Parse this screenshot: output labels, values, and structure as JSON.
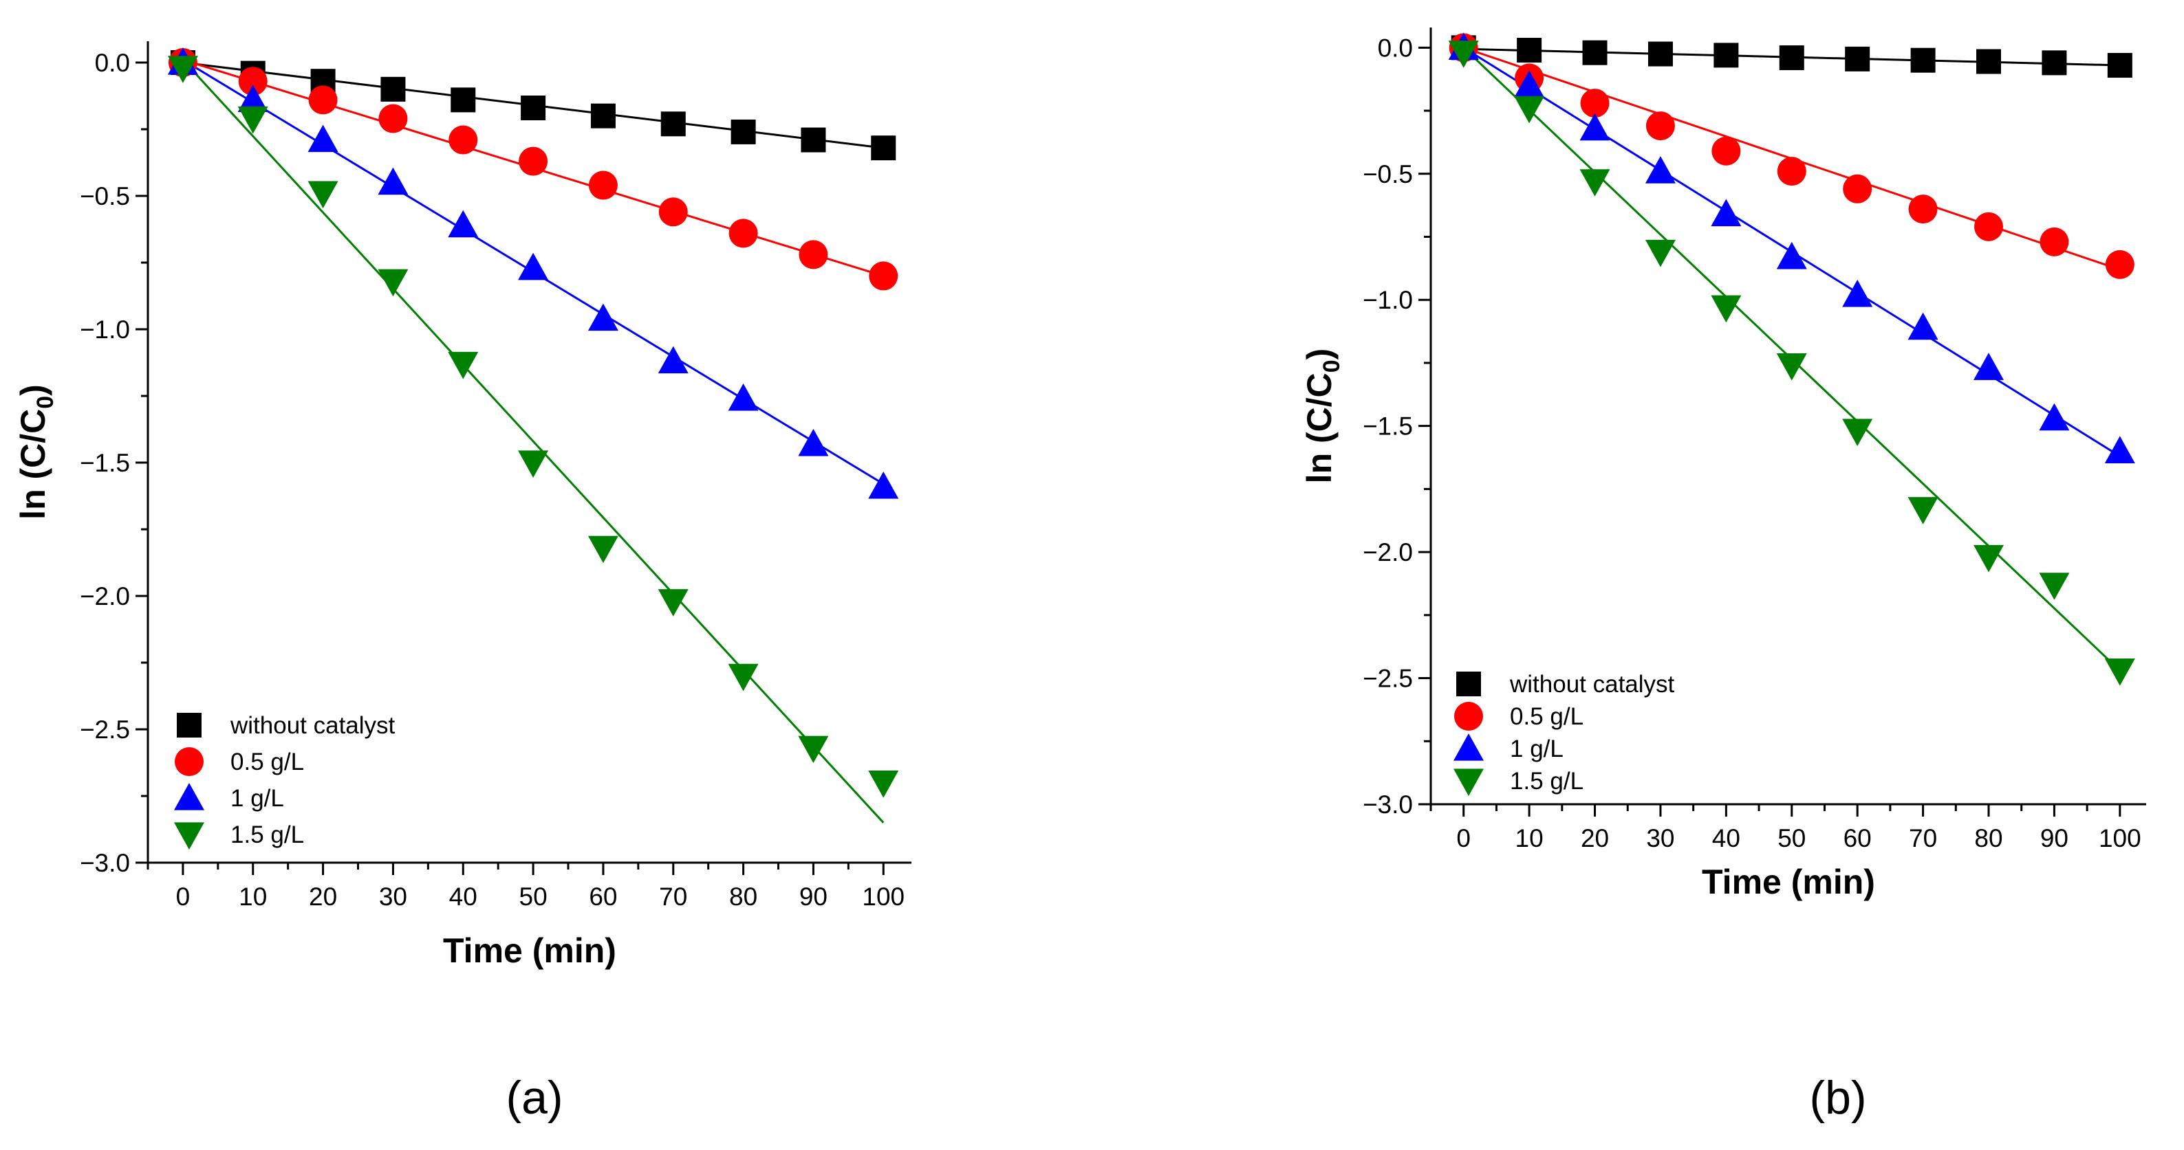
{
  "chart_data": [
    {
      "type": "scatter",
      "panel_label": "(a)",
      "xlabel": "Time (min)",
      "ylabel_main": "ln (C/C",
      "ylabel_sub": "0",
      "ylabel_close": ")",
      "xlim": [
        -5,
        104
      ],
      "ylim": [
        -3.0,
        0.08
      ],
      "xticks": [
        0,
        10,
        20,
        30,
        40,
        50,
        60,
        70,
        80,
        90,
        100
      ],
      "xtick_labels": [
        "0",
        "10",
        "20",
        "30",
        "40",
        "50",
        "60",
        "70",
        "80",
        "90",
        "100"
      ],
      "yticks": [
        0.0,
        -0.5,
        -1.0,
        -1.5,
        -2.0,
        -2.5,
        -3.0
      ],
      "ytick_labels": [
        "0.0",
        "−0.5",
        "−1.0",
        "−1.5",
        "−2.0",
        "−2.5",
        "−3.0"
      ],
      "legend_position": "bottom-left",
      "x": [
        0,
        10,
        20,
        30,
        40,
        50,
        60,
        70,
        80,
        90,
        100
      ],
      "series": [
        {
          "name": "without catalyst",
          "marker": "square",
          "color": "#000000",
          "values": [
            0,
            -0.04,
            -0.07,
            -0.1,
            -0.14,
            -0.17,
            -0.2,
            -0.23,
            -0.26,
            -0.29,
            -0.32
          ],
          "fit": [
            0,
            -0.32
          ]
        },
        {
          "name": "0.5 g/L",
          "marker": "circle",
          "color": "#ff0000",
          "values": [
            0,
            -0.07,
            -0.14,
            -0.21,
            -0.29,
            -0.37,
            -0.46,
            -0.56,
            -0.64,
            -0.72,
            -0.8
          ],
          "fit": [
            0.01,
            -0.8
          ]
        },
        {
          "name": "1 g/L",
          "marker": "triangle-up",
          "color": "#0000ff",
          "values": [
            0,
            -0.14,
            -0.29,
            -0.45,
            -0.61,
            -0.77,
            -0.96,
            -1.12,
            -1.26,
            -1.43,
            -1.59
          ],
          "fit": [
            0.01,
            -1.58
          ]
        },
        {
          "name": "1.5 g/L",
          "marker": "triangle-down",
          "color": "#008000",
          "values": [
            -0.02,
            -0.21,
            -0.49,
            -0.82,
            -1.13,
            -1.5,
            -1.82,
            -2.02,
            -2.3,
            -2.57,
            -2.7
          ],
          "fit": [
            0.01,
            -2.85
          ]
        }
      ]
    },
    {
      "type": "scatter",
      "panel_label": "(b)",
      "xlabel": "Time (min)",
      "ylabel_main": "ln (C/C",
      "ylabel_sub": "0",
      "ylabel_close": ")",
      "xlim": [
        -5,
        104
      ],
      "ylim": [
        -3.0,
        0.08
      ],
      "xticks": [
        0,
        10,
        20,
        30,
        40,
        50,
        60,
        70,
        80,
        90,
        100
      ],
      "xtick_labels": [
        "0",
        "10",
        "20",
        "30",
        "40",
        "50",
        "60",
        "70",
        "80",
        "90",
        "100"
      ],
      "yticks": [
        0.0,
        -0.5,
        -1.0,
        -1.5,
        -2.0,
        -2.5,
        -3.0
      ],
      "ytick_labels": [
        "0.0",
        "−0.5",
        "−1.0",
        "−1.5",
        "−2.0",
        "−2.5",
        "−3.0"
      ],
      "legend_position": "bottom-left",
      "x": [
        0,
        10,
        20,
        30,
        40,
        50,
        60,
        70,
        80,
        90,
        100
      ],
      "series": [
        {
          "name": "without catalyst",
          "marker": "square",
          "color": "#000000",
          "values": [
            0,
            -0.01,
            -0.02,
            -0.025,
            -0.03,
            -0.04,
            -0.045,
            -0.05,
            -0.055,
            -0.06,
            -0.07
          ],
          "fit": [
            -0.005,
            -0.07
          ]
        },
        {
          "name": "0.5 g/L",
          "marker": "circle",
          "color": "#ff0000",
          "values": [
            0,
            -0.12,
            -0.22,
            -0.31,
            -0.41,
            -0.49,
            -0.56,
            -0.64,
            -0.71,
            -0.77,
            -0.86
          ],
          "fit": [
            0,
            -0.88
          ]
        },
        {
          "name": "1 g/L",
          "marker": "triangle-up",
          "color": "#0000ff",
          "values": [
            0,
            -0.15,
            -0.32,
            -0.49,
            -0.66,
            -0.83,
            -0.98,
            -1.11,
            -1.27,
            -1.47,
            -1.6
          ],
          "fit": [
            0,
            -1.62
          ]
        },
        {
          "name": "1.5 g/L",
          "marker": "triangle-down",
          "color": "#008000",
          "values": [
            -0.02,
            -0.24,
            -0.53,
            -0.81,
            -1.03,
            -1.26,
            -1.52,
            -1.83,
            -2.02,
            -2.13,
            -2.47
          ],
          "fit": [
            0,
            -2.47
          ]
        }
      ]
    }
  ]
}
